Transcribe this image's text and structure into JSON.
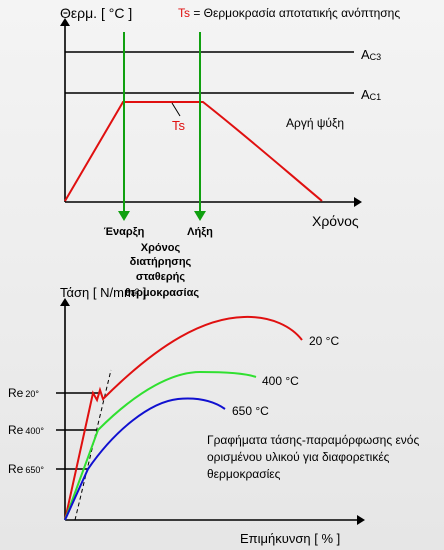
{
  "top_chart": {
    "y_label": "Θερμ. [ °C ]",
    "legend_ts_symbol": "Ts",
    "legend_ts_text": " = Θερμοκρασία αποτατικής ανόπτησης",
    "ac3_main": "A",
    "ac3_sub": "C3",
    "ac1_main": "A",
    "ac1_sub": "C1",
    "ts_label": "Ts",
    "cooling_label": "Αργή ψύξη",
    "x_label": "Χρόνος",
    "start_label": "Έναρξη",
    "end_label": "Λήξη",
    "hold_time_label": [
      "Χρόνος",
      "διατήρησης",
      "σταθερής",
      "θερμοκρασίας"
    ]
  },
  "bottom_chart": {
    "y_label": "Τάση [ N/mm² ]",
    "x_label": "Επιμήκυνση [ % ]",
    "re_20_main": "Re",
    "re_20_sub": "20°",
    "re_400_main": "Re",
    "re_400_sub": "400°",
    "re_650_main": "Re",
    "re_650_sub": "650°",
    "series": [
      {
        "name": "20 °C",
        "color": "#e01010"
      },
      {
        "name": "400 °C",
        "color": "#30e030"
      },
      {
        "name": "650 °C",
        "color": "#1010d0"
      }
    ],
    "caption": [
      "Γραφήματα τάσης-παραμόρφωσης ενός",
      "ορισμένου υλικού για διαφορετικές",
      "θερμοκρασίες"
    ]
  },
  "colors": {
    "heat_curve": "#e01010",
    "marker_arrow": "#10a010",
    "axis": "#000000"
  }
}
